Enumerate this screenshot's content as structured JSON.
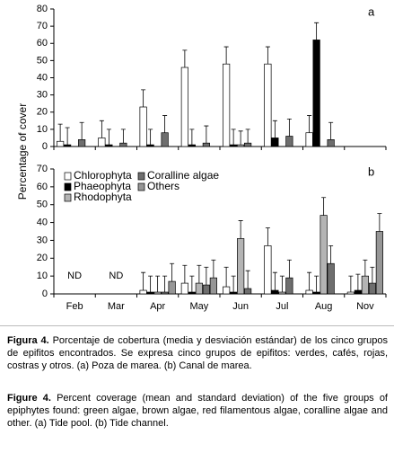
{
  "chart_data": [
    {
      "type": "bar",
      "panel_label": "a",
      "y_label": "Percentage of cover",
      "ylim": [
        0,
        80
      ],
      "yticks": [
        0,
        10,
        20,
        30,
        40,
        50,
        60,
        70,
        80
      ],
      "series": [
        {
          "color": "#ffffff",
          "values": [
            3,
            5,
            23,
            46,
            48,
            48,
            8,
            null
          ],
          "errors": [
            10,
            10,
            10,
            10,
            10,
            10,
            10,
            null
          ]
        },
        {
          "color": "#000000",
          "values": [
            1,
            1,
            1,
            1,
            1,
            5,
            62,
            null
          ],
          "errors": [
            10,
            9,
            9,
            9,
            9,
            10,
            10,
            null
          ]
        },
        {
          "color": "#b4b4b4",
          "values": [
            null,
            null,
            null,
            null,
            1,
            null,
            null,
            null
          ],
          "errors": [
            null,
            null,
            null,
            null,
            8,
            null,
            null,
            null
          ]
        },
        {
          "color": "#6e6e6e",
          "values": [
            4,
            2,
            8,
            2,
            2,
            6,
            4,
            null
          ],
          "errors": [
            10,
            8,
            10,
            10,
            8,
            10,
            10,
            null
          ]
        },
        {
          "color": "#969696",
          "values": [
            null,
            null,
            null,
            null,
            null,
            null,
            null,
            null
          ],
          "errors": [
            null,
            null,
            null,
            null,
            null,
            null,
            null,
            null
          ]
        }
      ]
    },
    {
      "type": "bar",
      "panel_label": "b",
      "legend": "upper left",
      "categories": [
        "Feb",
        "Mar",
        "Apr",
        "May",
        "Jun",
        "Jul",
        "Aug",
        "Nov"
      ],
      "annotations": [
        {
          "text": "ND",
          "category": "Feb"
        },
        {
          "text": "ND",
          "category": "Mar"
        }
      ],
      "ylim": [
        0,
        70
      ],
      "yticks": [
        0,
        10,
        20,
        30,
        40,
        50,
        60,
        70
      ],
      "series": [
        {
          "name": "Chlorophyta",
          "color": "#ffffff",
          "values": [
            null,
            null,
            2,
            6,
            4,
            27,
            2,
            1
          ],
          "errors": [
            null,
            null,
            10,
            10,
            11,
            10,
            10,
            9
          ]
        },
        {
          "name": "Phaeophyta",
          "color": "#000000",
          "values": [
            null,
            null,
            1,
            1,
            1,
            2,
            1,
            2
          ],
          "errors": [
            null,
            null,
            9,
            9,
            9,
            10,
            9,
            9
          ]
        },
        {
          "name": "Rhodophyta",
          "color": "#b4b4b4",
          "values": [
            null,
            null,
            1,
            6,
            31,
            1,
            44,
            10
          ],
          "errors": [
            null,
            null,
            9,
            10,
            10,
            9,
            10,
            9
          ]
        },
        {
          "name": "Coralline algae",
          "color": "#6e6e6e",
          "values": [
            null,
            null,
            1,
            5,
            3,
            9,
            17,
            6
          ],
          "errors": [
            null,
            null,
            9,
            10,
            10,
            10,
            10,
            9
          ]
        },
        {
          "name": "Others",
          "color": "#969696",
          "values": [
            null,
            null,
            7,
            9,
            null,
            null,
            null,
            35
          ],
          "errors": [
            null,
            null,
            10,
            10,
            null,
            null,
            null,
            10
          ]
        }
      ]
    }
  ],
  "captions": [
    {
      "label": "Figura 4.",
      "text": "Porcentaje de cobertura (media y desviación estándar) de los cinco grupos de epifitos encontrados. Se expresa cinco grupos de epifitos: verdes, cafés, rojas, costras y otros. (a) Poza de marea. (b) Canal de marea."
    },
    {
      "label": "Figure 4.",
      "text": "Percent coverage (mean and standard deviation) of the five groups of epiphytes found: green algae, brown algae, red filamentous algae, coralline algae and other. (a) Tide pool. (b) Tide channel."
    }
  ]
}
